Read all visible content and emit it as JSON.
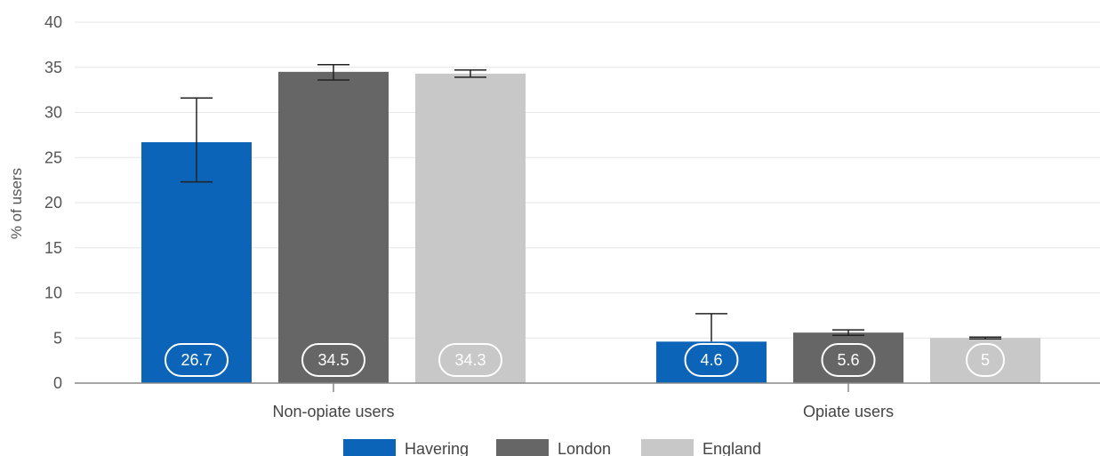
{
  "chart_data": {
    "type": "bar",
    "ylabel": "% of users",
    "xlabel": "",
    "ylim": [
      0,
      40
    ],
    "yticks": [
      0,
      5,
      10,
      15,
      20,
      25,
      30,
      35,
      40
    ],
    "grid": true,
    "legend_position": "bottom",
    "categories": [
      "Non-opiate users",
      "Opiate users"
    ],
    "series": [
      {
        "name": "Havering",
        "color": "#0b64b7",
        "values": [
          26.7,
          4.6
        ],
        "labels": [
          "26.7",
          "4.6"
        ],
        "error_low": [
          22.3,
          null
        ],
        "error_high": [
          31.6,
          7.7
        ]
      },
      {
        "name": "London",
        "color": "#666666",
        "values": [
          34.5,
          5.6
        ],
        "labels": [
          "34.5",
          "5.6"
        ],
        "error_low": [
          33.6,
          5.3
        ],
        "error_high": [
          35.3,
          5.9
        ]
      },
      {
        "name": "England",
        "color": "#c8c8c8",
        "values": [
          34.3,
          5.0
        ],
        "labels": [
          "34.3",
          "5"
        ],
        "error_low": [
          33.9,
          4.9
        ],
        "error_high": [
          34.7,
          5.1
        ]
      }
    ]
  }
}
